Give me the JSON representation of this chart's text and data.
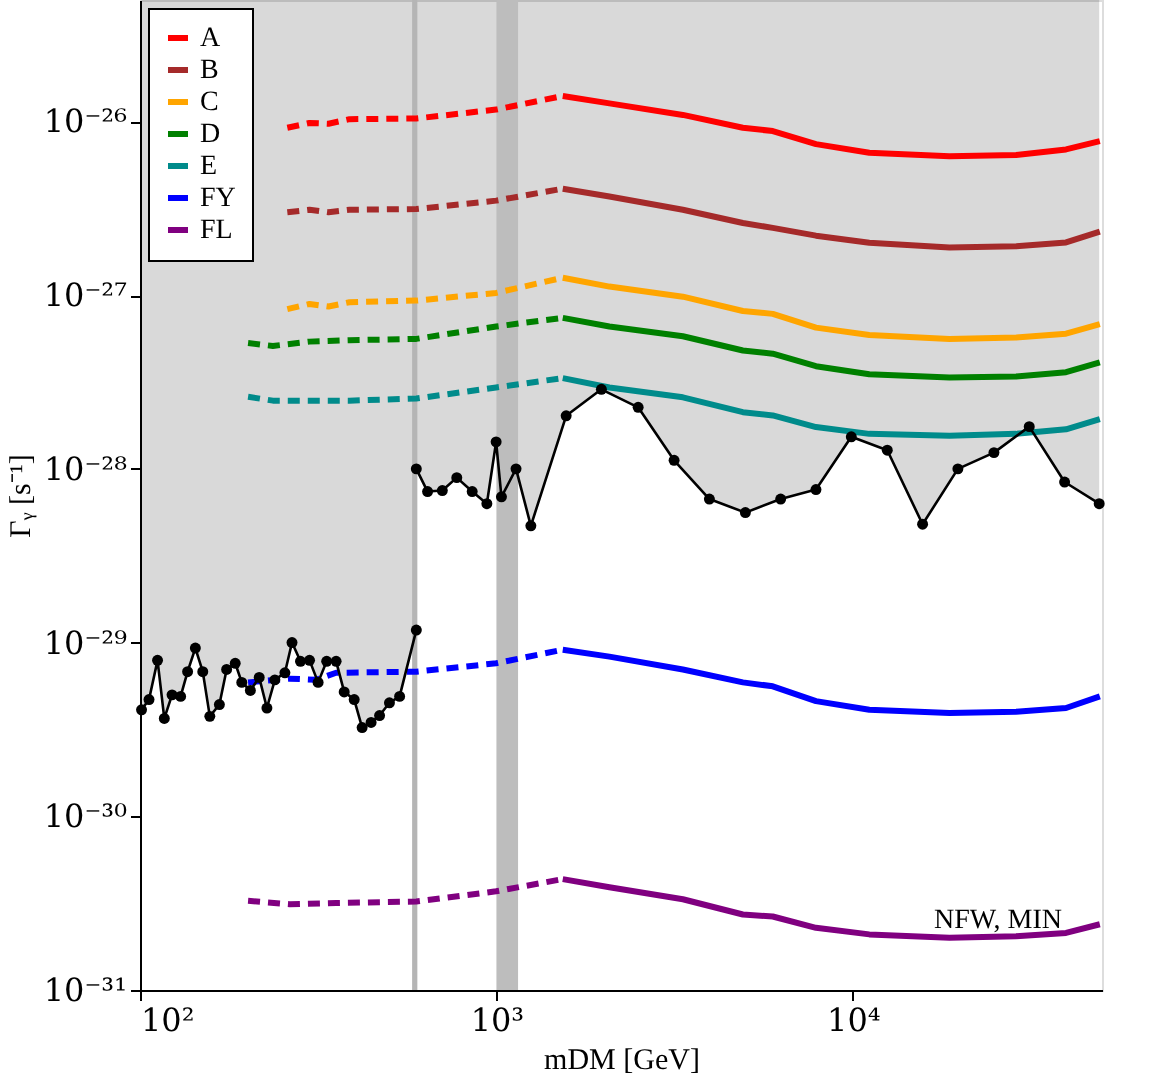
{
  "chart_data": {
    "type": "line",
    "xlabel": "mDM [GeV]",
    "ylabel": "Γᵧ [s⁻¹]",
    "log": "xy",
    "grid": false,
    "legend": "top left",
    "xlim": [
      100,
      50000
    ],
    "ylim": [
      1e-31,
      5e-26
    ],
    "xticks": [
      {
        "value": 100,
        "label": "10²"
      },
      {
        "value": 1000,
        "label": "10³"
      },
      {
        "value": 10000,
        "label": "10⁴"
      }
    ],
    "yticks": [
      {
        "value": 1e-31,
        "label": "10⁻³¹"
      },
      {
        "value": 1e-30,
        "label": "10⁻³⁰"
      },
      {
        "value": 1e-29,
        "label": "10⁻²⁹"
      },
      {
        "value": 1e-28,
        "label": "10⁻²⁸"
      },
      {
        "value": 1e-27,
        "label": "10⁻²⁷"
      },
      {
        "value": 1e-26,
        "label": "10⁻²⁶"
      }
    ],
    "annotations": [
      "NFW, MIN"
    ],
    "bands": [
      {
        "axis": "x",
        "from": 580,
        "to": 600,
        "color": "#b5b5b5"
      },
      {
        "axis": "x",
        "from": 1000,
        "to": 1150,
        "color": "#bdbdbd"
      }
    ],
    "series": [
      {
        "color": "#000000",
        "marker": "circle",
        "x": [
          101,
          106,
          112,
          117,
          123,
          130,
          136,
          143,
          150,
          157,
          167,
          175,
          185,
          193,
          204,
          216,
          227,
          239,
          255,
          267,
          282,
          299,
          316,
          334,
          355,
          374,
          399,
          420,
          445,
          470,
          501,
          535,
          596
        ],
        "values": [
          4.1e-30,
          4.7e-30,
          7.9e-30,
          3.66e-30,
          5e-30,
          4.9e-30,
          6.8e-30,
          9.3e-30,
          6.8e-30,
          3.76e-30,
          4.4e-30,
          7e-30,
          7.6e-30,
          5.9e-30,
          5.3e-30,
          6.3e-30,
          4.2e-30,
          6.1e-30,
          6.7e-30,
          1e-29,
          7.8e-30,
          7.9e-30,
          5.9e-30,
          7.8e-30,
          7.8e-30,
          5.2e-30,
          4.7e-30,
          3.24e-30,
          3.47e-30,
          3.8e-30,
          4.5e-30,
          4.9e-30,
          1.18e-29
        ],
        "lower": [
          4.1e-30,
          4.7e-30,
          7.9e-30,
          3.66e-30,
          5e-30,
          4.9e-30,
          6.8e-30,
          9.3e-30,
          6.8e-30,
          3.76e-30,
          4.4e-30,
          7e-30,
          7.6e-30,
          5.9e-30,
          5.3e-30,
          6.3e-30,
          4.2e-30,
          6.1e-30,
          6.7e-30,
          1e-29,
          7.8e-30,
          7.9e-30,
          5.9e-30,
          7.8e-30,
          7.8e-30,
          5.2e-30,
          4.7e-30,
          3.24e-30,
          3.47e-30,
          3.8e-30,
          4.5e-30,
          4.9e-30,
          1.18e-29
        ],
        "upper": [
          5e-26,
          5e-26,
          5e-26,
          5e-26,
          5e-26,
          5e-26,
          5e-26,
          5e-26,
          5e-26,
          5e-26,
          5e-26,
          5e-26,
          5e-26,
          5e-26,
          5e-26,
          5e-26,
          5e-26,
          5e-26,
          5e-26,
          5e-26,
          5e-26,
          5e-26,
          5e-26,
          5e-26,
          5e-26,
          5e-26,
          5e-26,
          5e-26,
          5e-26,
          5e-26,
          5e-26,
          5e-26,
          5e-26
        ]
      },
      {
        "color": "#000000",
        "marker": "circle",
        "x": [
          596,
          641,
          705,
          774,
          855,
          940,
          998,
          1033,
          1135,
          1249,
          1569,
          1970,
          2498,
          3151,
          3958,
          4994,
          6273,
          7879,
          9901,
          12490,
          15690,
          19710,
          24880,
          31250,
          39270,
          49100
        ],
        "values": [
          1e-28,
          7.4e-29,
          7.5e-29,
          8.9e-29,
          7.4e-29,
          6.3e-29,
          1.43e-28,
          6.9e-29,
          1e-28,
          4.7e-29,
          2.02e-28,
          2.87e-28,
          2.26e-28,
          1.12e-28,
          6.7e-29,
          5.6e-29,
          6.7e-29,
          7.6e-29,
          1.53e-28,
          1.28e-28,
          4.8e-29,
          1e-28,
          1.24e-28,
          1.75e-28,
          8.4e-29,
          6.3e-29
        ],
        "lower": [
          1e-28,
          7.4e-29,
          7.5e-29,
          8.9e-29,
          7.4e-29,
          6.3e-29,
          1.43e-28,
          6.9e-29,
          1e-28,
          4.7e-29,
          2.02e-28,
          2.87e-28,
          2.26e-28,
          1.12e-28,
          6.7e-29,
          5.6e-29,
          6.7e-29,
          7.6e-29,
          1.53e-28,
          1.28e-28,
          4.8e-29,
          1e-28,
          1.24e-28,
          1.75e-28,
          8.4e-29,
          6.3e-29
        ],
        "upper": [
          5e-26,
          5e-26,
          5e-26,
          5e-26,
          5e-26,
          5e-26,
          5e-26,
          5e-26,
          5e-26,
          5e-26,
          5e-26,
          5e-26,
          5e-26,
          5e-26,
          5e-26,
          5e-26,
          5e-26,
          5e-26,
          5e-26,
          5e-26,
          5e-26,
          5e-26,
          5e-26,
          5e-26,
          5e-26,
          5e-26
        ]
      },
      {
        "color": "#ff0000",
        "line_style": "dashed",
        "x": [
          259,
          299,
          338,
          387,
          596,
          998,
          1535
        ],
        "values": [
          9.2e-27,
          9.8e-27,
          9.7e-27,
          1.03e-26,
          1.04e-26,
          1.17e-26,
          1.4e-26
        ]
      },
      {
        "name": "A",
        "color": "#ff0000",
        "x": [
          1535,
          2075,
          3335,
          4914,
          5961,
          7880,
          11120,
          18660,
          28710,
          39630,
          49300
        ],
        "values": [
          1.4e-26,
          1.27e-26,
          1.09e-26,
          9.2e-27,
          8.8e-27,
          7.4e-27,
          6.6e-27,
          6.3e-27,
          6.4e-27,
          6.9e-27,
          7.7e-27
        ]
      },
      {
        "color": "#a52a2a",
        "line_style": "dashed",
        "x": [
          259,
          299,
          338,
          387,
          596,
          998,
          1535
        ],
        "values": [
          3e-27,
          3.1e-27,
          3e-27,
          3.1e-27,
          3.13e-27,
          3.5e-27,
          4.1e-27
        ]
      },
      {
        "name": "B",
        "color": "#a52a2a",
        "x": [
          1535,
          2075,
          3335,
          4914,
          5961,
          7880,
          11120,
          18660,
          28710,
          39630,
          49300
        ],
        "values": [
          4.1e-27,
          3.7e-27,
          3.1e-27,
          2.6e-27,
          2.44e-27,
          2.2e-27,
          2e-27,
          1.88e-27,
          1.91e-27,
          2.01e-27,
          2.32e-27
        ]
      },
      {
        "color": "#ffa500",
        "line_style": "dashed",
        "x": [
          259,
          299,
          338,
          387,
          596,
          998,
          1535
        ],
        "values": [
          8.3e-28,
          8.9e-28,
          8.6e-28,
          9.1e-28,
          9.3e-28,
          1.03e-27,
          1.26e-27
        ]
      },
      {
        "name": "C",
        "color": "#ffa500",
        "x": [
          1535,
          2075,
          3335,
          4914,
          5961,
          7880,
          11120,
          18660,
          28710,
          39630,
          49300
        ],
        "values": [
          1.26e-27,
          1.12e-27,
          9.8e-28,
          8.1e-28,
          7.8e-28,
          6.5e-28,
          5.9e-28,
          5.6e-28,
          5.7e-28,
          6e-28,
          6.8e-28
        ]
      },
      {
        "color": "#008000",
        "line_style": "dashed",
        "x": [
          201,
          236,
          299,
          387,
          596,
          998,
          1535
        ],
        "values": [
          5.3e-28,
          5.1e-28,
          5.4e-28,
          5.5e-28,
          5.6e-28,
          6.6e-28,
          7.4e-28
        ]
      },
      {
        "name": "D",
        "color": "#008000",
        "x": [
          1535,
          2075,
          3335,
          4914,
          5961,
          7880,
          11120,
          18660,
          28710,
          39630,
          49300
        ],
        "values": [
          7.4e-28,
          6.6e-28,
          5.8e-28,
          4.8e-28,
          4.6e-28,
          3.9e-28,
          3.5e-28,
          3.36e-28,
          3.4e-28,
          3.6e-28,
          4.1e-28
        ]
      },
      {
        "color": "#008b8b",
        "line_style": "dashed",
        "x": [
          201,
          236,
          299,
          387,
          596,
          998,
          1535
        ],
        "values": [
          2.6e-28,
          2.47e-28,
          2.47e-28,
          2.47e-28,
          2.54e-28,
          2.94e-28,
          3.33e-28
        ]
      },
      {
        "name": "E",
        "color": "#008b8b",
        "x": [
          1535,
          2075,
          3335,
          4914,
          5961,
          7880,
          11120,
          18660,
          28710,
          39630,
          49300
        ],
        "values": [
          3.33e-28,
          2.94e-28,
          2.58e-28,
          2.12e-28,
          2.03e-28,
          1.74e-28,
          1.59e-28,
          1.55e-28,
          1.59e-28,
          1.69e-28,
          1.93e-28
        ]
      },
      {
        "color": "#0000ff",
        "line_style": "dashed",
        "x": [
          201,
          263,
          312,
          355,
          596,
          998,
          1535
        ],
        "values": [
          5.9e-30,
          6.2e-30,
          6.1e-30,
          6.7e-30,
          6.8e-30,
          7.6e-30,
          9.1e-30
        ]
      },
      {
        "name": "FY",
        "color": "#0000ff",
        "x": [
          1535,
          2075,
          3335,
          4914,
          5961,
          7880,
          11120,
          18660,
          28710,
          39630,
          49300
        ],
        "values": [
          9.1e-30,
          8.3e-30,
          7e-30,
          5.9e-30,
          5.6e-30,
          4.6e-30,
          4.1e-30,
          3.93e-30,
          4e-30,
          4.2e-30,
          4.9e-30
        ]
      },
      {
        "color": "#800080",
        "line_style": "dashed",
        "x": [
          201,
          263,
          355,
          596,
          998,
          1535
        ],
        "values": [
          3.26e-31,
          3.12e-31,
          3.17e-31,
          3.23e-31,
          3.7e-31,
          4.35e-31
        ]
      },
      {
        "name": "FL",
        "color": "#800080",
        "x": [
          1535,
          2075,
          3335,
          4914,
          5961,
          7880,
          11120,
          18660,
          28710,
          39630,
          49300
        ],
        "values": [
          4.35e-31,
          3.9e-31,
          3.33e-31,
          2.72e-31,
          2.65e-31,
          2.28e-31,
          2.09e-31,
          2e-31,
          2.04e-31,
          2.13e-31,
          2.39e-31
        ]
      }
    ]
  }
}
